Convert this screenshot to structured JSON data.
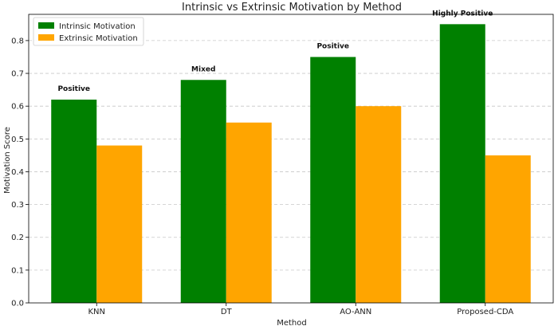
{
  "chart_data": {
    "type": "bar",
    "title": "Intrinsic vs Extrinsic Motivation by Method",
    "xlabel": "Method",
    "ylabel": "Motivation Score",
    "categories": [
      "KNN",
      "DT",
      "AO-ANN",
      "Proposed-CDA"
    ],
    "series": [
      {
        "name": "Intrinsic Motivation",
        "values": [
          0.62,
          0.68,
          0.75,
          0.85
        ],
        "color": "#008000"
      },
      {
        "name": "Extrinsic Motivation",
        "values": [
          0.48,
          0.55,
          0.6,
          0.45
        ],
        "color": "#FFA500"
      }
    ],
    "annotations": [
      "Positive",
      "Mixed",
      "Positive",
      "Highly Positive"
    ],
    "ylim": [
      0,
      0.88
    ],
    "yticks": [
      0.0,
      0.1,
      0.2,
      0.3,
      0.4,
      0.5,
      0.6,
      0.7,
      0.8
    ],
    "ytick_labels": [
      "0.0",
      "0.1",
      "0.2",
      "0.3",
      "0.4",
      "0.5",
      "0.6",
      "0.7",
      "0.8"
    ],
    "grid": "y-dashed",
    "legend_position": "top-left"
  }
}
